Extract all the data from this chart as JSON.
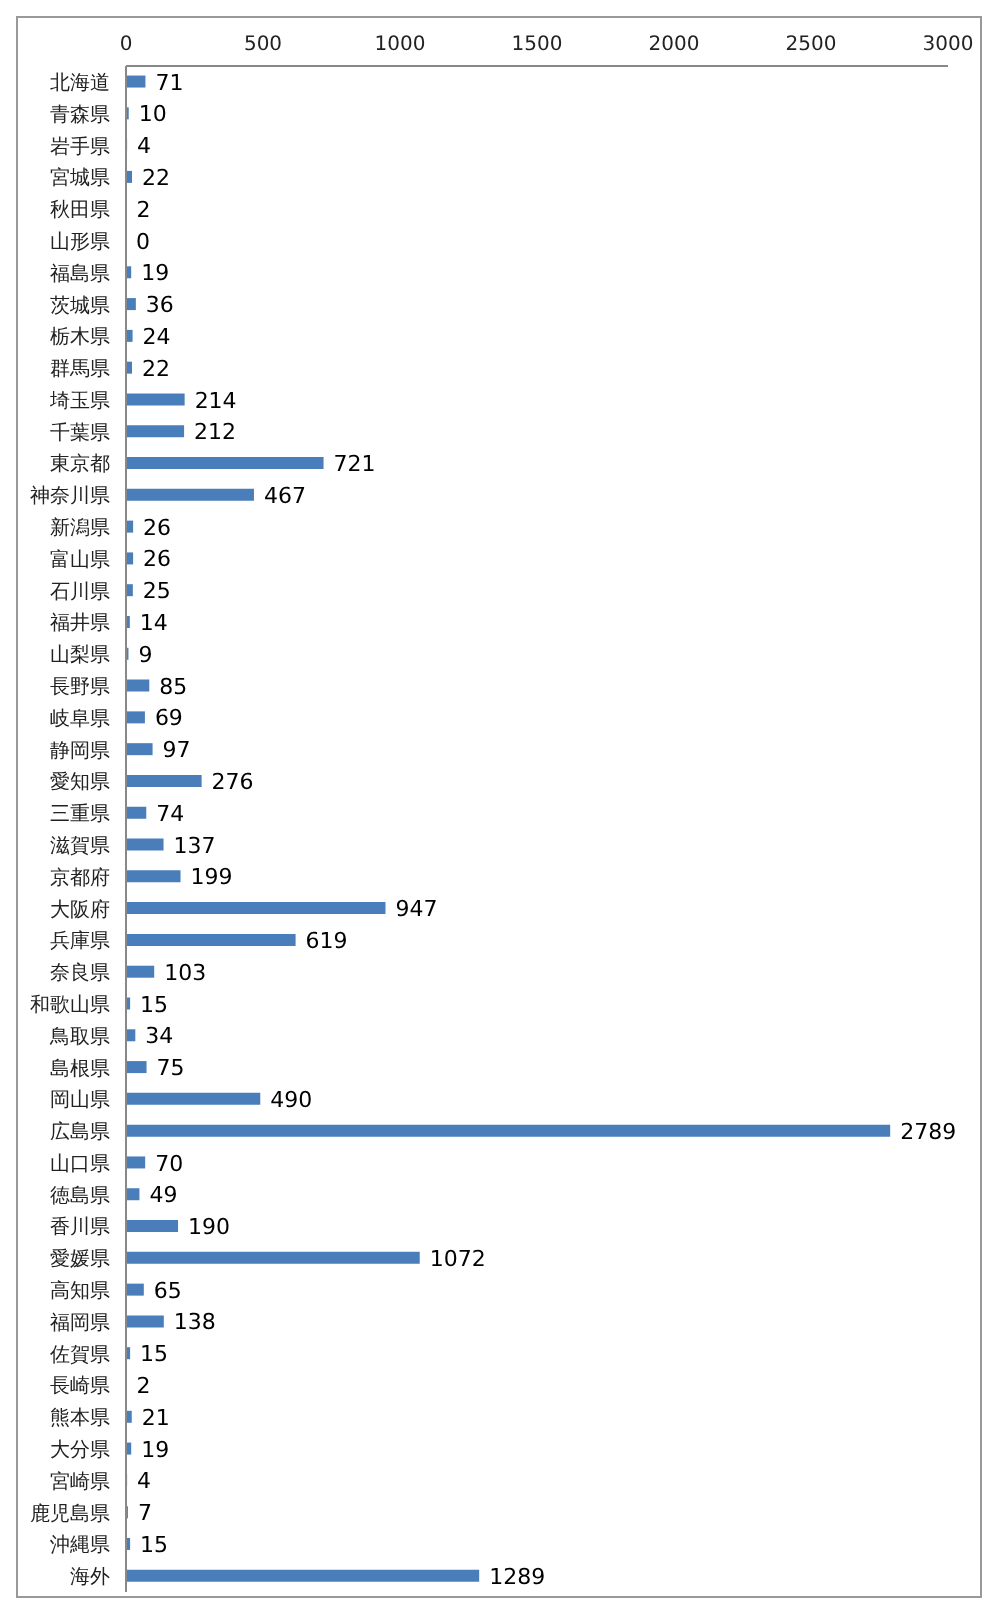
{
  "chart_data": {
    "type": "bar",
    "orientation": "horizontal",
    "categories": [
      "北海道",
      "青森県",
      "岩手県",
      "宮城県",
      "秋田県",
      "山形県",
      "福島県",
      "茨城県",
      "栃木県",
      "群馬県",
      "埼玉県",
      "千葉県",
      "東京都",
      "神奈川県",
      "新潟県",
      "富山県",
      "石川県",
      "福井県",
      "山梨県",
      "長野県",
      "岐阜県",
      "静岡県",
      "愛知県",
      "三重県",
      "滋賀県",
      "京都府",
      "大阪府",
      "兵庫県",
      "奈良県",
      "和歌山県",
      "鳥取県",
      "島根県",
      "岡山県",
      "広島県",
      "山口県",
      "徳島県",
      "香川県",
      "愛媛県",
      "高知県",
      "福岡県",
      "佐賀県",
      "長崎県",
      "熊本県",
      "大分県",
      "宮崎県",
      "鹿児島県",
      "沖縄県",
      "海外"
    ],
    "values": [
      71,
      10,
      4,
      22,
      2,
      0,
      19,
      36,
      24,
      22,
      214,
      212,
      721,
      467,
      26,
      26,
      25,
      14,
      9,
      85,
      69,
      97,
      276,
      74,
      137,
      199,
      947,
      619,
      103,
      15,
      34,
      75,
      490,
      2789,
      70,
      49,
      190,
      1072,
      65,
      138,
      15,
      2,
      21,
      19,
      4,
      7,
      15,
      1289
    ],
    "color": "#4a7ebb",
    "xlim": [
      0,
      3000
    ],
    "xticks": [
      0,
      500,
      1000,
      1500,
      2000,
      2500,
      3000
    ],
    "data_labels": true
  }
}
